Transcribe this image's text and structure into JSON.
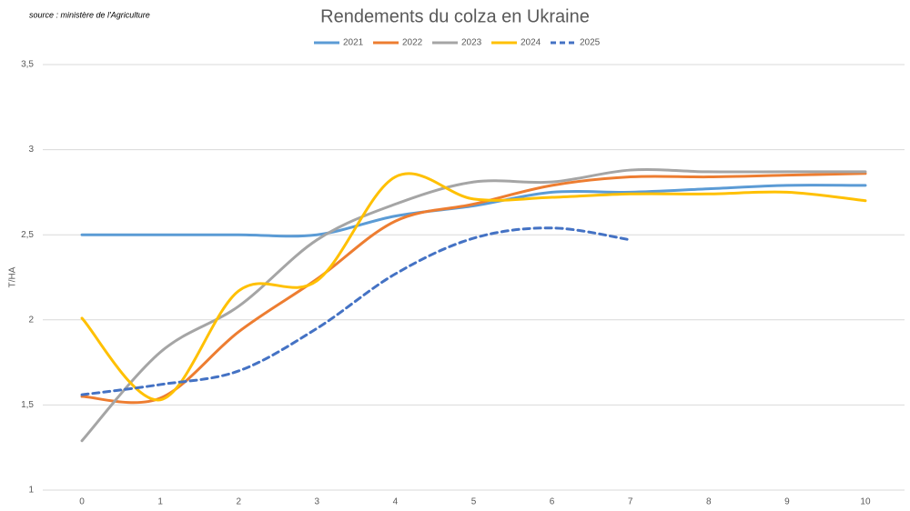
{
  "chart_data": {
    "type": "line",
    "title": "Rendements du colza en Ukraine",
    "source": "source : ministère de l'Agriculture",
    "y_label": "T/HA",
    "x": [
      0,
      1,
      2,
      3,
      4,
      5,
      6,
      7,
      8,
      9,
      10
    ],
    "xlim": [
      -0.5,
      10.5
    ],
    "xticks": [
      0,
      1,
      2,
      3,
      4,
      5,
      6,
      7,
      8,
      9,
      10
    ],
    "ylim": [
      1,
      3.5
    ],
    "yticks": [
      1,
      {
        "value": 1.5,
        "label": "1,5"
      },
      2,
      {
        "value": 2.5,
        "label": "2,5"
      },
      3,
      {
        "value": 3.5,
        "label": "3,5"
      }
    ],
    "grid": true,
    "legend": "top",
    "smooth": true,
    "series": [
      {
        "name": "2021",
        "color": "#5b9bd5",
        "values": [
          2.5,
          2.5,
          2.5,
          2.5,
          2.61,
          2.67,
          2.75,
          2.75,
          2.77,
          2.79,
          2.79
        ]
      },
      {
        "name": "2022",
        "color": "#ed7d31",
        "values": [
          1.55,
          1.54,
          1.93,
          2.24,
          2.58,
          2.68,
          2.79,
          2.84,
          2.84,
          2.85,
          2.86
        ]
      },
      {
        "name": "2023",
        "color": "#a5a5a5",
        "values": [
          1.29,
          1.81,
          2.08,
          2.47,
          2.68,
          2.81,
          2.81,
          2.88,
          2.87,
          2.87,
          2.87
        ]
      },
      {
        "name": "2024",
        "color": "#ffc000",
        "values": [
          2.01,
          1.53,
          2.17,
          2.23,
          2.84,
          2.71,
          2.72,
          2.74,
          2.74,
          2.75,
          2.7
        ]
      },
      {
        "name": "2025",
        "color": "#4472c4",
        "dashed": true,
        "values": [
          1.56,
          1.62,
          1.7,
          1.95,
          2.27,
          2.48,
          2.54,
          2.47,
          null,
          null,
          null
        ]
      }
    ]
  }
}
